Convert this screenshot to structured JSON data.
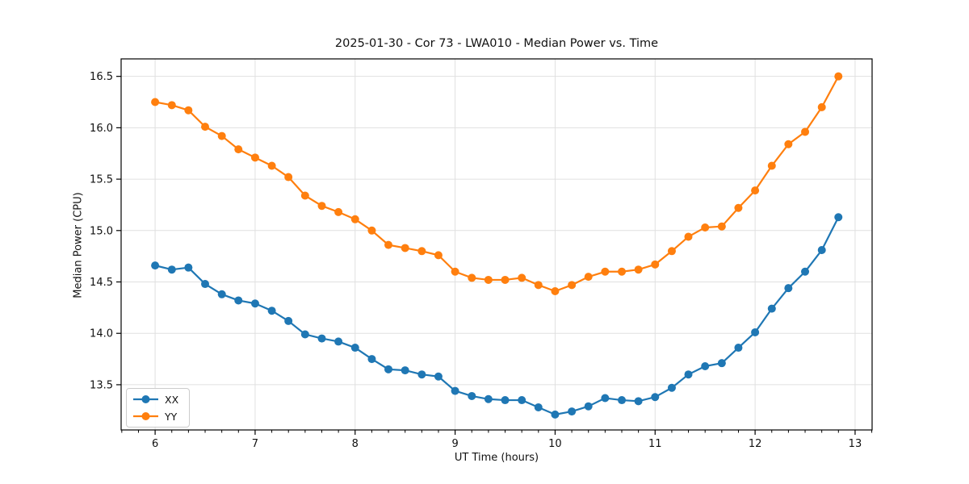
{
  "chart_data": {
    "type": "line",
    "title": "2025-01-30 - Cor 73 - LWA010 - Median Power vs. Time",
    "xlabel": "UT Time (hours)",
    "ylabel": "Median Power (CPU)",
    "xlim": [
      5.66,
      13.17
    ],
    "ylim": [
      13.06,
      16.67
    ],
    "xticks": [
      6,
      7,
      8,
      9,
      10,
      11,
      12,
      13
    ],
    "yticks": [
      13.5,
      14.0,
      14.5,
      15.0,
      15.5,
      16.0,
      16.5
    ],
    "x_minor_step_hours": 0.1667,
    "grid": true,
    "legend_position": "lower left",
    "x": [
      6.0,
      6.167,
      6.333,
      6.5,
      6.667,
      6.833,
      7.0,
      7.167,
      7.333,
      7.5,
      7.667,
      7.833,
      8.0,
      8.167,
      8.333,
      8.5,
      8.667,
      8.833,
      9.0,
      9.167,
      9.333,
      9.5,
      9.667,
      9.833,
      10.0,
      10.167,
      10.333,
      10.5,
      10.667,
      10.833,
      11.0,
      11.167,
      11.333,
      11.5,
      11.667,
      11.833,
      12.0,
      12.167,
      12.333,
      12.5,
      12.667,
      12.833
    ],
    "series": [
      {
        "name": "XX",
        "color": "#1f77b4",
        "values": [
          14.66,
          14.62,
          14.64,
          14.48,
          14.38,
          14.32,
          14.29,
          14.22,
          14.12,
          13.99,
          13.95,
          13.92,
          13.86,
          13.75,
          13.65,
          13.64,
          13.6,
          13.58,
          13.44,
          13.39,
          13.36,
          13.35,
          13.35,
          13.28,
          13.21,
          13.24,
          13.29,
          13.37,
          13.35,
          13.34,
          13.38,
          13.47,
          13.6,
          13.68,
          13.71,
          13.86,
          14.01,
          14.24,
          14.44,
          14.6,
          14.81,
          15.13
        ]
      },
      {
        "name": "YY",
        "color": "#ff7f0e",
        "values": [
          16.25,
          16.22,
          16.17,
          16.01,
          15.92,
          15.79,
          15.71,
          15.63,
          15.52,
          15.34,
          15.24,
          15.18,
          15.11,
          15.0,
          14.86,
          14.83,
          14.8,
          14.76,
          14.6,
          14.54,
          14.52,
          14.52,
          14.54,
          14.47,
          14.41,
          14.47,
          14.55,
          14.6,
          14.6,
          14.62,
          14.67,
          14.8,
          14.94,
          15.03,
          15.04,
          15.22,
          15.39,
          15.63,
          15.84,
          15.96,
          16.2,
          16.5
        ]
      }
    ],
    "colors": {
      "grid": "#e0e0e0",
      "spine": "#000000",
      "tick": "#000000",
      "text": "#111111",
      "background": "#ffffff"
    }
  }
}
